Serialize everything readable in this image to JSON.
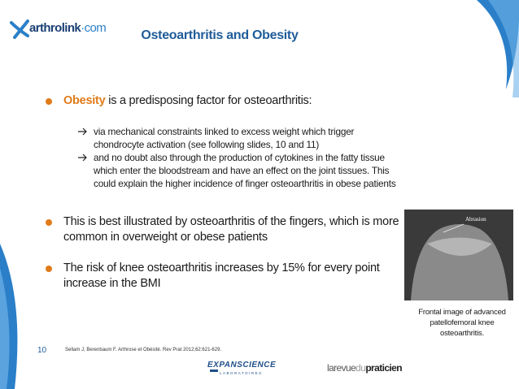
{
  "logo": {
    "name": "arthrolink",
    "suffix": "·com"
  },
  "header": {
    "title": "Osteoarthritis and Obesity"
  },
  "bullets": [
    {
      "highlight": "Obesity",
      "text": " is a predisposing factor for osteoarthritis:",
      "subitems": [
        "via mechanical constraints linked to excess weight which trigger chondrocyte activation (see following slides, 10 and 11)",
        "and no doubt also through the production of cytokines in the fatty tissue which enter the bloodstream and have an effect on the joint tissues. This could explain the higher incidence of finger osteoarthritis in obese patients"
      ]
    },
    {
      "text": "This is best illustrated by osteoarthritis of the fingers, which is more common in overweight or obese patients"
    },
    {
      "text": "The risk of knee osteoarthritis increases by 15% for every point increase in the BMI"
    }
  ],
  "figure": {
    "label": "Abrasion",
    "caption": "Frontal image of advanced patellofemoral knee osteoarthritis."
  },
  "footer": {
    "page": "10",
    "reference": "Sellam J, Berenbaum F. Arthrose et Obésité. Rev Prat 2012;62:621-629.",
    "sponsor": {
      "name": "EXPANSCIENCE",
      "sub": "LABORATOIRES"
    },
    "publisher": [
      "larevue",
      "du",
      "praticien"
    ]
  }
}
